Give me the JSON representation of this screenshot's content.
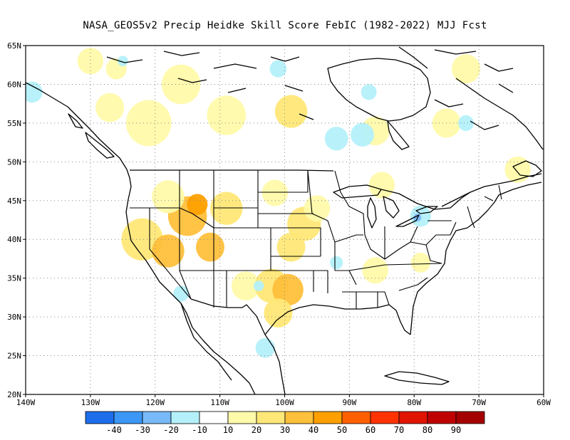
{
  "title": "NASA_GEOS5v2 Precip Heidke Skill Score FebIC (1982-2022) MJJ Fcst",
  "map": {
    "lon_range": [
      -140,
      -60
    ],
    "lat_range": [
      20,
      65
    ],
    "lon_ticks": [
      {
        "lon": -140,
        "label": "140W"
      },
      {
        "lon": -130,
        "label": "130W"
      },
      {
        "lon": -120,
        "label": "120W"
      },
      {
        "lon": -110,
        "label": "110W"
      },
      {
        "lon": -100,
        "label": "100W"
      },
      {
        "lon": -90,
        "label": "90W"
      },
      {
        "lon": -80,
        "label": "80W"
      },
      {
        "lon": -70,
        "label": "70W"
      },
      {
        "lon": -60,
        "label": "60W"
      }
    ],
    "lat_ticks": [
      {
        "lat": 20,
        "label": "20N"
      },
      {
        "lat": 25,
        "label": "25N"
      },
      {
        "lat": 30,
        "label": "30N"
      },
      {
        "lat": 35,
        "label": "35N"
      },
      {
        "lat": 40,
        "label": "40N"
      },
      {
        "lat": 45,
        "label": "45N"
      },
      {
        "lat": 50,
        "label": "50N"
      },
      {
        "lat": 55,
        "label": "55N"
      },
      {
        "lat": 60,
        "label": "60N"
      },
      {
        "lat": 65,
        "label": "65N"
      }
    ],
    "grid": "dotted"
  },
  "colorbar": {
    "colors": [
      "#1e6eeb",
      "#3c96f5",
      "#78b9fa",
      "#b4f0fa",
      "#ffffff",
      "#fffaaa",
      "#ffe878",
      "#ffc03c",
      "#ffa000",
      "#ff6000",
      "#ff3200",
      "#e11400",
      "#c00000",
      "#a50000"
    ],
    "labels": [
      "-40",
      "-30",
      "-20",
      "-10",
      "10",
      "20",
      "30",
      "40",
      "50",
      "60",
      "70",
      "80",
      "90"
    ]
  },
  "skill_regions": [
    {
      "lon": -122,
      "lat": 40,
      "r": 3.2,
      "value": 25
    },
    {
      "lon": -118,
      "lat": 38.5,
      "r": 2.5,
      "value": 35
    },
    {
      "lon": -115,
      "lat": 43,
      "r": 3,
      "value": 30
    },
    {
      "lon": -113.5,
      "lat": 44.5,
      "r": 1.6,
      "value": 40
    },
    {
      "lon": -111.5,
      "lat": 39,
      "r": 2.2,
      "value": 35
    },
    {
      "lon": -109,
      "lat": 44,
      "r": 2.5,
      "value": 25
    },
    {
      "lon": -118,
      "lat": 45.5,
      "r": 2.5,
      "value": 15
    },
    {
      "lon": -106,
      "lat": 34,
      "r": 2.2,
      "value": 15
    },
    {
      "lon": -102,
      "lat": 34,
      "r": 2.6,
      "value": 25
    },
    {
      "lon": -99.5,
      "lat": 33.5,
      "r": 2.4,
      "value": 35
    },
    {
      "lon": -101,
      "lat": 30.5,
      "r": 2.2,
      "value": 20
    },
    {
      "lon": -97,
      "lat": 42,
      "r": 2.6,
      "value": 25
    },
    {
      "lon": -99,
      "lat": 39,
      "r": 2.2,
      "value": 20
    },
    {
      "lon": -95,
      "lat": 44,
      "r": 2,
      "value": 15
    },
    {
      "lon": -101.5,
      "lat": 46,
      "r": 2,
      "value": 15
    },
    {
      "lon": -121,
      "lat": 55,
      "r": 3.5,
      "value": 15
    },
    {
      "lon": -116,
      "lat": 60,
      "r": 3,
      "value": 15
    },
    {
      "lon": -127,
      "lat": 57,
      "r": 2.2,
      "value": 15
    },
    {
      "lon": -109,
      "lat": 56,
      "r": 3,
      "value": 15
    },
    {
      "lon": -99,
      "lat": 56.5,
      "r": 2.5,
      "value": 20
    },
    {
      "lon": -86,
      "lat": 54,
      "r": 2.2,
      "value": 15
    },
    {
      "lon": -75,
      "lat": 55,
      "r": 2.2,
      "value": 15
    },
    {
      "lon": -72,
      "lat": 62,
      "r": 2.2,
      "value": 15
    },
    {
      "lon": -64,
      "lat": 49,
      "r": 2,
      "value": 15
    },
    {
      "lon": -86,
      "lat": 36,
      "r": 2,
      "value": 15
    },
    {
      "lon": -79,
      "lat": 37,
      "r": 1.5,
      "value": 15
    },
    {
      "lon": -85,
      "lat": 47,
      "r": 2,
      "value": 15
    },
    {
      "lon": -130,
      "lat": 63,
      "r": 2,
      "value": 15
    },
    {
      "lon": -126,
      "lat": 62,
      "r": 1.6,
      "value": 15
    },
    {
      "lon": -92,
      "lat": 53,
      "r": 1.8,
      "value": -15
    },
    {
      "lon": -88,
      "lat": 53.5,
      "r": 1.8,
      "value": -15
    },
    {
      "lon": -79,
      "lat": 43,
      "r": 1.6,
      "value": -15
    },
    {
      "lon": -79.5,
      "lat": 42.8,
      "r": 0.6,
      "value": -25
    },
    {
      "lon": -104,
      "lat": 34,
      "r": 0.8,
      "value": -20
    },
    {
      "lon": -101,
      "lat": 62,
      "r": 1.3,
      "value": -15
    },
    {
      "lon": -87,
      "lat": 59,
      "r": 1.2,
      "value": -15
    },
    {
      "lon": -139,
      "lat": 59,
      "r": 1.6,
      "value": -15
    },
    {
      "lon": -103,
      "lat": 26,
      "r": 1.5,
      "value": -15
    },
    {
      "lon": -125,
      "lat": 63,
      "r": 0.8,
      "value": -15
    },
    {
      "lon": -72,
      "lat": 55,
      "r": 1.2,
      "value": -15
    },
    {
      "lon": -116,
      "lat": 33,
      "r": 1.2,
      "value": -15
    },
    {
      "lon": -92,
      "lat": 37,
      "r": 1,
      "value": -15
    }
  ]
}
